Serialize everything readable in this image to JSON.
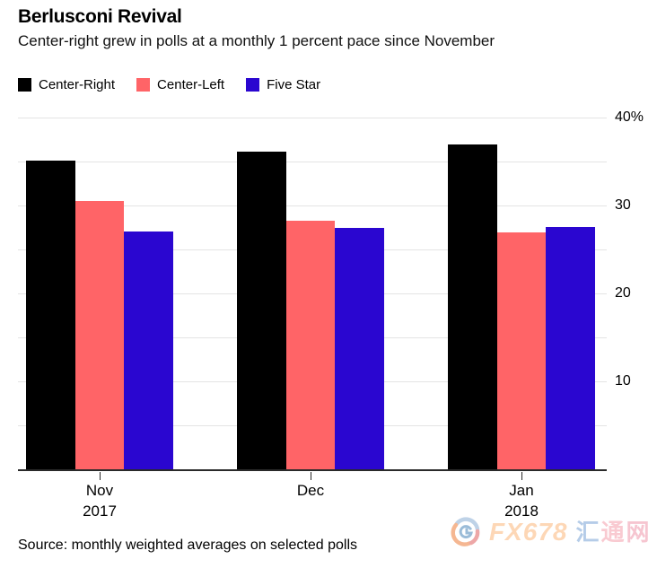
{
  "header": {
    "title": "Berlusconi Revival",
    "subtitle": "Center-right grew in polls at a monthly 1 percent pace since November"
  },
  "legend": [
    {
      "label": "Center-Right",
      "color": "#000000"
    },
    {
      "label": "Center-Left",
      "color": "#ff6467"
    },
    {
      "label": "Five Star",
      "color": "#2a06d0"
    }
  ],
  "chart_data": {
    "type": "bar",
    "title": "Berlusconi Revival",
    "subtitle": "Center-right grew in polls at a monthly 1 percent pace since November",
    "categories": [
      "Nov",
      "Dec",
      "Jan"
    ],
    "category_years": [
      "2017",
      "",
      "2018"
    ],
    "series": [
      {
        "name": "Center-Right",
        "color": "#000000",
        "values": [
          35.1,
          36.2,
          37.0
        ]
      },
      {
        "name": "Center-Left",
        "color": "#ff6467",
        "values": [
          30.5,
          28.3,
          27.0
        ]
      },
      {
        "name": "Five Star",
        "color": "#2a06d0",
        "values": [
          27.1,
          27.5,
          27.6
        ]
      }
    ],
    "xlabel": "",
    "ylabel": "",
    "unit": "%",
    "ylim": [
      0,
      40
    ],
    "gridline_step": 5,
    "grid": true,
    "yticks": [
      {
        "value": 40,
        "label": "40%"
      },
      {
        "value": 30,
        "label": "30"
      },
      {
        "value": 20,
        "label": "20"
      },
      {
        "value": 10,
        "label": "10"
      }
    ],
    "legend_position": "top-left",
    "axis_side": "right"
  },
  "source": {
    "text": "Source: monthly weighted averages on selected polls"
  },
  "watermark": {
    "brand": "FX678",
    "cjk": "汇通网",
    "brand_color": "#fa9640",
    "cjk_blue": "#84aad8",
    "cjk_pink": "#f49eac"
  }
}
